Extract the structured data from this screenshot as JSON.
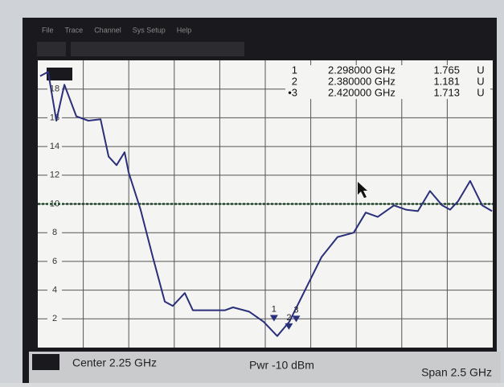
{
  "menu": [
    "File",
    "Trace",
    "Channel",
    "Sys Setup",
    "Help"
  ],
  "chart_data": {
    "type": "line",
    "series": [
      {
        "color": "#2a2f7a",
        "x": [
          1.013,
          1.057,
          1.102,
          1.146,
          1.212,
          1.278,
          1.345,
          1.389,
          1.433,
          1.477,
          1.499,
          1.565,
          1.632,
          1.698,
          1.742,
          1.808,
          1.852,
          2.029,
          2.073,
          2.162,
          2.241,
          2.316,
          2.382,
          2.449,
          2.559,
          2.647,
          2.736,
          2.802,
          2.868,
          2.957,
          3.023,
          3.089,
          3.155,
          3.222,
          3.266,
          3.31,
          3.376,
          3.442,
          3.496
        ],
        "values": [
          18.9,
          19.2,
          15.8,
          18.3,
          16.1,
          15.8,
          15.9,
          13.3,
          12.7,
          13.6,
          12.2,
          9.6,
          6.3,
          3.2,
          2.9,
          3.8,
          2.6,
          2.6,
          2.8,
          2.5,
          1.8,
          0.8,
          1.8,
          3.5,
          6.3,
          7.7,
          8.0,
          9.4,
          9.1,
          9.9,
          9.6,
          9.5,
          10.9,
          9.9,
          9.6,
          10.2,
          11.6,
          9.9,
          9.5
        ]
      }
    ],
    "ylim": [
      0,
      20
    ],
    "yticks": [
      2,
      4,
      6,
      8,
      10,
      12,
      14,
      16,
      18
    ],
    "reference": 10,
    "center": {
      "value": 2.25,
      "label": "Center  2.25 GHz"
    },
    "span": {
      "value": 2.5,
      "label": "Span  2.5 GHz"
    },
    "power": "Pwr -10 dBm",
    "markers": [
      {
        "name": "1",
        "frequency": {
          "value": 2.298,
          "label": "2.298000 GHz"
        },
        "value": 1.765,
        "unit": "U"
      },
      {
        "name": "2",
        "frequency": {
          "value": 2.38,
          "label": "2.380000 GHz"
        },
        "value": 1.181,
        "unit": "U"
      },
      {
        "name": "3",
        "table_label": "•3",
        "frequency": {
          "value": 2.42,
          "label": "2.420000 GHz"
        },
        "value": 1.713,
        "unit": "U"
      }
    ]
  }
}
